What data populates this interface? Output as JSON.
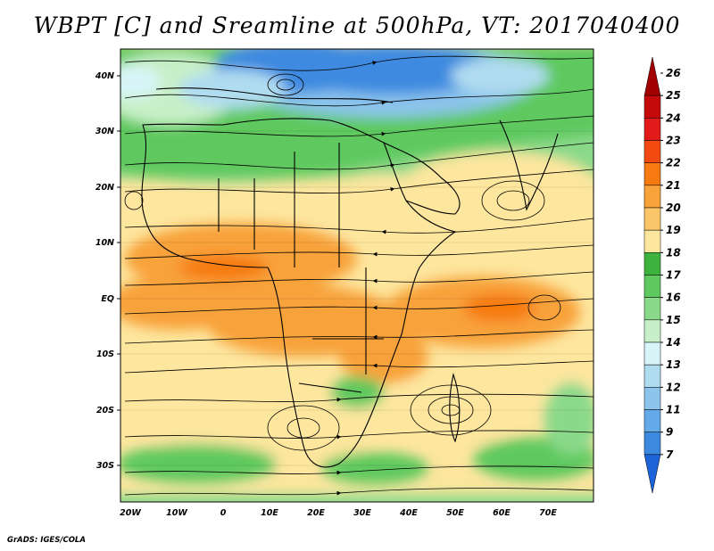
{
  "title": "WBPT [C] and Sreamline at 500hPa, VT: 2017040400",
  "footer": "GrADS: IGES/COLA",
  "lat_labels": [
    "40N",
    "30N",
    "20N",
    "10N",
    "EQ",
    "10S",
    "20S",
    "30S"
  ],
  "lon_labels": [
    "20W",
    "10W",
    "0",
    "10E",
    "20E",
    "30E",
    "40E",
    "50E",
    "60E",
    "70E"
  ],
  "colorbar": {
    "labels": [
      "26",
      "25",
      "24",
      "23",
      "22",
      "21",
      "20",
      "19",
      "18",
      "17",
      "16",
      "15",
      "14",
      "13",
      "12",
      "11",
      "9",
      "7"
    ],
    "colors_top_to_bottom": [
      "#a00000",
      "#c40a0a",
      "#e11a1a",
      "#f24a10",
      "#f77a10",
      "#f8a23a",
      "#fbc569",
      "#fde69e",
      "#3db33d",
      "#5fc95f",
      "#8ad98a",
      "#c8f0c8",
      "#d8f4f8",
      "#b0dcf0",
      "#8cc4ec",
      "#64a9e8",
      "#3c8ae0",
      "#1c64d8"
    ]
  },
  "legend_meaning": "Wet-bulb potential temperature in degrees C with streamlines at 500 hPa"
}
